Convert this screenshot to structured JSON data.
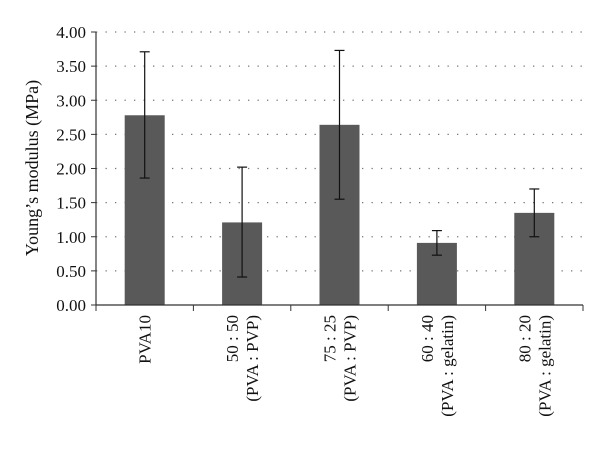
{
  "chart_data": {
    "type": "bar",
    "title": "",
    "ylabel": "Young’s modulus (MPa)",
    "xlabel": "",
    "ylim": [
      0,
      4
    ],
    "yticks": [
      "0.00",
      "0.50",
      "1.00",
      "1.50",
      "2.00",
      "2.50",
      "3.00",
      "3.50",
      "4.00"
    ],
    "grid": true,
    "categories": [
      {
        "line1": "PVA10",
        "line2": ""
      },
      {
        "line1": "50 : 50",
        "line2": "(PVA : PVP)"
      },
      {
        "line1": "75 : 25",
        "line2": "(PVA : PVP)"
      },
      {
        "line1": "60 : 40",
        "line2": "(PVA : gelatin)"
      },
      {
        "line1": "80 : 20",
        "line2": "(PVA : gelatin)"
      }
    ],
    "values": [
      2.78,
      1.21,
      2.64,
      0.91,
      1.35
    ],
    "error_low": [
      1.86,
      0.41,
      1.55,
      0.73,
      1.0
    ],
    "error_high": [
      3.71,
      2.02,
      3.73,
      1.09,
      1.7
    ],
    "colors": {
      "bar": "#595959",
      "axis": "#333333",
      "grid": "#777777"
    }
  }
}
